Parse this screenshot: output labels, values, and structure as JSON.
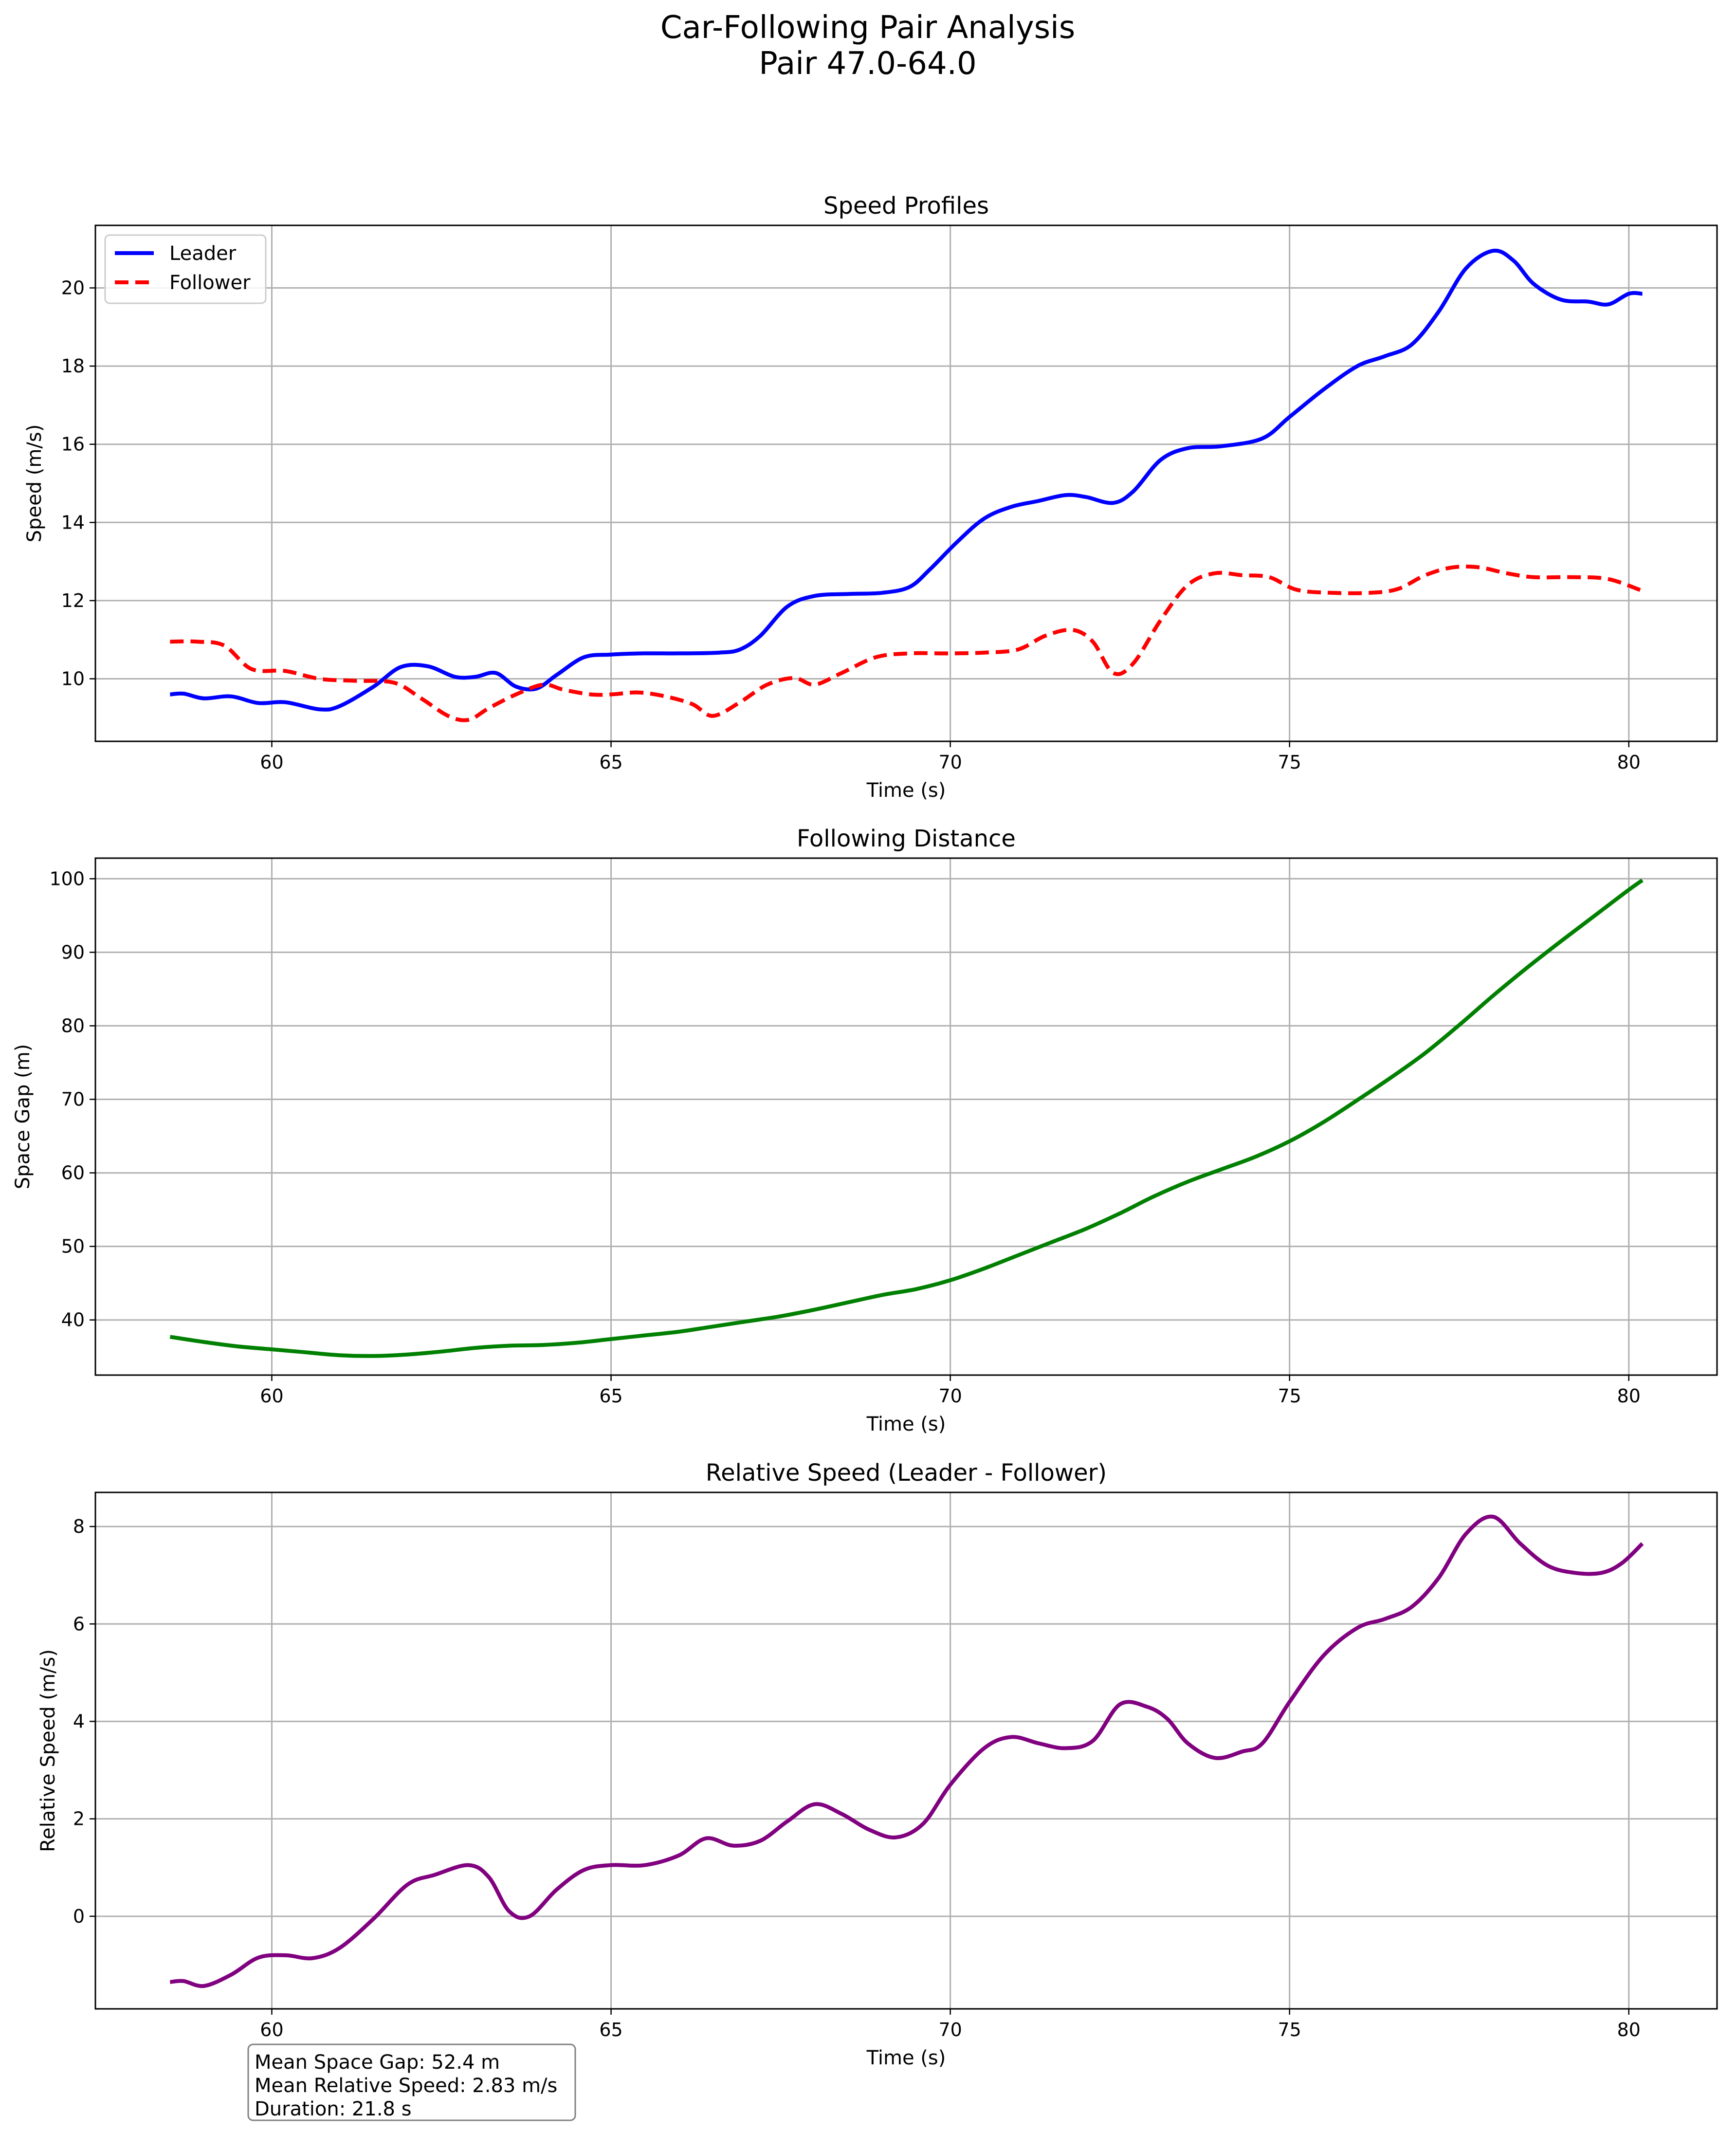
{
  "figure": {
    "title_line1": "Car-Following Pair Analysis",
    "title_line2": "Pair 47.0-64.0"
  },
  "stats_box": {
    "line1": "Mean Space Gap: 52.4 m",
    "line2": "Mean Relative Speed: 2.83 m/s",
    "line3": "Duration: 21.8 s"
  },
  "chart_data": [
    {
      "type": "line",
      "title": "Speed Profiles",
      "xlabel": "Time (s)",
      "ylabel": "Speed (m/s)",
      "xlim": [
        57.4,
        81.3
      ],
      "ylim": [
        8.4,
        21.6
      ],
      "xticks": [
        60,
        65,
        70,
        75,
        80
      ],
      "yticks": [
        10,
        12,
        14,
        16,
        18,
        20
      ],
      "grid": true,
      "legend": "top-left",
      "series": [
        {
          "name": "Leader",
          "color": "#0000ff",
          "dash": "solid",
          "points": [
            [
              58.5,
              9.6
            ],
            [
              58.7,
              9.62
            ],
            [
              59.0,
              9.5
            ],
            [
              59.4,
              9.55
            ],
            [
              59.8,
              9.38
            ],
            [
              60.2,
              9.4
            ],
            [
              60.7,
              9.22
            ],
            [
              61.0,
              9.3
            ],
            [
              61.5,
              9.8
            ],
            [
              61.9,
              10.3
            ],
            [
              62.3,
              10.32
            ],
            [
              62.7,
              10.05
            ],
            [
              63.0,
              10.05
            ],
            [
              63.3,
              10.15
            ],
            [
              63.6,
              9.8
            ],
            [
              63.9,
              9.75
            ],
            [
              64.2,
              10.1
            ],
            [
              64.6,
              10.55
            ],
            [
              65.0,
              10.62
            ],
            [
              65.5,
              10.65
            ],
            [
              66.0,
              10.65
            ],
            [
              66.6,
              10.67
            ],
            [
              66.9,
              10.75
            ],
            [
              67.2,
              11.1
            ],
            [
              67.6,
              11.85
            ],
            [
              68.0,
              12.12
            ],
            [
              68.5,
              12.17
            ],
            [
              69.0,
              12.2
            ],
            [
              69.4,
              12.35
            ],
            [
              69.7,
              12.8
            ],
            [
              70.1,
              13.5
            ],
            [
              70.5,
              14.1
            ],
            [
              70.9,
              14.4
            ],
            [
              71.3,
              14.55
            ],
            [
              71.7,
              14.7
            ],
            [
              72.0,
              14.65
            ],
            [
              72.4,
              14.5
            ],
            [
              72.7,
              14.8
            ],
            [
              73.1,
              15.6
            ],
            [
              73.5,
              15.9
            ],
            [
              74.0,
              15.95
            ],
            [
              74.6,
              16.15
            ],
            [
              75.0,
              16.7
            ],
            [
              75.5,
              17.4
            ],
            [
              76.0,
              18.0
            ],
            [
              76.4,
              18.25
            ],
            [
              76.8,
              18.55
            ],
            [
              77.2,
              19.4
            ],
            [
              77.6,
              20.5
            ],
            [
              78.0,
              20.95
            ],
            [
              78.3,
              20.7
            ],
            [
              78.6,
              20.1
            ],
            [
              79.0,
              19.7
            ],
            [
              79.4,
              19.65
            ],
            [
              79.7,
              19.58
            ],
            [
              80.0,
              19.85
            ],
            [
              80.2,
              19.85
            ]
          ]
        },
        {
          "name": "Follower",
          "color": "#ff0000",
          "dash": "dashed",
          "points": [
            [
              58.5,
              10.95
            ],
            [
              58.9,
              10.95
            ],
            [
              59.3,
              10.85
            ],
            [
              59.7,
              10.25
            ],
            [
              60.2,
              10.2
            ],
            [
              60.7,
              10.0
            ],
            [
              61.2,
              9.95
            ],
            [
              61.8,
              9.9
            ],
            [
              62.2,
              9.5
            ],
            [
              62.6,
              9.05
            ],
            [
              62.9,
              8.95
            ],
            [
              63.2,
              9.25
            ],
            [
              63.6,
              9.6
            ],
            [
              64.0,
              9.85
            ],
            [
              64.3,
              9.72
            ],
            [
              64.7,
              9.6
            ],
            [
              65.0,
              9.6
            ],
            [
              65.4,
              9.65
            ],
            [
              65.8,
              9.55
            ],
            [
              66.2,
              9.35
            ],
            [
              66.5,
              9.05
            ],
            [
              66.9,
              9.4
            ],
            [
              67.3,
              9.85
            ],
            [
              67.7,
              10.02
            ],
            [
              68.0,
              9.85
            ],
            [
              68.4,
              10.15
            ],
            [
              68.9,
              10.55
            ],
            [
              69.4,
              10.65
            ],
            [
              70.0,
              10.65
            ],
            [
              70.5,
              10.67
            ],
            [
              71.0,
              10.75
            ],
            [
              71.4,
              11.1
            ],
            [
              71.8,
              11.25
            ],
            [
              72.1,
              10.95
            ],
            [
              72.4,
              10.15
            ],
            [
              72.7,
              10.4
            ],
            [
              73.1,
              11.5
            ],
            [
              73.5,
              12.4
            ],
            [
              73.9,
              12.7
            ],
            [
              74.3,
              12.65
            ],
            [
              74.7,
              12.6
            ],
            [
              75.1,
              12.28
            ],
            [
              75.6,
              12.2
            ],
            [
              76.2,
              12.2
            ],
            [
              76.6,
              12.3
            ],
            [
              77.0,
              12.65
            ],
            [
              77.4,
              12.85
            ],
            [
              77.8,
              12.85
            ],
            [
              78.2,
              12.7
            ],
            [
              78.6,
              12.6
            ],
            [
              79.2,
              12.6
            ],
            [
              79.7,
              12.55
            ],
            [
              80.2,
              12.25
            ]
          ]
        }
      ]
    },
    {
      "type": "line",
      "title": "Following Distance",
      "xlabel": "Time (s)",
      "ylabel": "Space Gap (m)",
      "xlim": [
        57.4,
        81.3
      ],
      "ylim": [
        32.5,
        102.8
      ],
      "xticks": [
        60,
        65,
        70,
        75,
        80
      ],
      "yticks": [
        40,
        50,
        60,
        70,
        80,
        90,
        100
      ],
      "grid": true,
      "series": [
        {
          "color": "#008000",
          "dash": "solid",
          "points": [
            [
              58.5,
              37.7
            ],
            [
              59.0,
              37.0
            ],
            [
              59.5,
              36.4
            ],
            [
              60.0,
              36.0
            ],
            [
              60.5,
              35.6
            ],
            [
              61.0,
              35.2
            ],
            [
              61.5,
              35.1
            ],
            [
              62.0,
              35.3
            ],
            [
              62.5,
              35.7
            ],
            [
              63.0,
              36.2
            ],
            [
              63.5,
              36.5
            ],
            [
              64.0,
              36.6
            ],
            [
              64.5,
              36.9
            ],
            [
              65.0,
              37.4
            ],
            [
              65.5,
              37.9
            ],
            [
              66.0,
              38.4
            ],
            [
              66.5,
              39.1
            ],
            [
              67.0,
              39.8
            ],
            [
              67.5,
              40.5
            ],
            [
              68.0,
              41.4
            ],
            [
              68.5,
              42.4
            ],
            [
              69.0,
              43.4
            ],
            [
              69.5,
              44.2
            ],
            [
              70.0,
              45.4
            ],
            [
              70.5,
              47.0
            ],
            [
              71.0,
              48.8
            ],
            [
              71.5,
              50.6
            ],
            [
              72.0,
              52.4
            ],
            [
              72.5,
              54.5
            ],
            [
              73.0,
              56.8
            ],
            [
              73.5,
              58.8
            ],
            [
              74.0,
              60.5
            ],
            [
              74.5,
              62.2
            ],
            [
              75.0,
              64.3
            ],
            [
              75.5,
              66.9
            ],
            [
              76.0,
              69.9
            ],
            [
              76.5,
              73.0
            ],
            [
              77.0,
              76.3
            ],
            [
              77.5,
              80.1
            ],
            [
              78.0,
              84.1
            ],
            [
              78.5,
              87.9
            ],
            [
              79.0,
              91.5
            ],
            [
              79.5,
              95.0
            ],
            [
              80.0,
              98.5
            ],
            [
              80.2,
              99.8
            ]
          ]
        }
      ]
    },
    {
      "type": "line",
      "title": "Relative Speed (Leader - Follower)",
      "xlabel": "Time (s)",
      "ylabel": "Relative Speed (m/s)",
      "xlim": [
        57.4,
        81.3
      ],
      "ylim": [
        -1.9,
        8.7
      ],
      "xticks": [
        60,
        65,
        70,
        75,
        80
      ],
      "yticks": [
        0,
        2,
        4,
        6,
        8
      ],
      "grid": true,
      "series": [
        {
          "color": "#800080",
          "dash": "solid",
          "points": [
            [
              58.5,
              -1.35
            ],
            [
              58.7,
              -1.33
            ],
            [
              59.0,
              -1.43
            ],
            [
              59.4,
              -1.2
            ],
            [
              59.8,
              -0.85
            ],
            [
              60.2,
              -0.8
            ],
            [
              60.6,
              -0.86
            ],
            [
              61.0,
              -0.65
            ],
            [
              61.5,
              -0.05
            ],
            [
              62.0,
              0.65
            ],
            [
              62.4,
              0.85
            ],
            [
              62.9,
              1.05
            ],
            [
              63.2,
              0.8
            ],
            [
              63.5,
              0.1
            ],
            [
              63.8,
              0.0
            ],
            [
              64.2,
              0.55
            ],
            [
              64.6,
              0.95
            ],
            [
              65.0,
              1.05
            ],
            [
              65.5,
              1.05
            ],
            [
              66.0,
              1.25
            ],
            [
              66.4,
              1.6
            ],
            [
              66.8,
              1.45
            ],
            [
              67.2,
              1.55
            ],
            [
              67.6,
              1.95
            ],
            [
              68.0,
              2.3
            ],
            [
              68.4,
              2.1
            ],
            [
              68.8,
              1.78
            ],
            [
              69.2,
              1.62
            ],
            [
              69.6,
              1.9
            ],
            [
              70.0,
              2.7
            ],
            [
              70.5,
              3.45
            ],
            [
              70.9,
              3.68
            ],
            [
              71.3,
              3.55
            ],
            [
              71.7,
              3.45
            ],
            [
              72.1,
              3.6
            ],
            [
              72.5,
              4.35
            ],
            [
              72.9,
              4.3
            ],
            [
              73.2,
              4.05
            ],
            [
              73.5,
              3.55
            ],
            [
              73.9,
              3.25
            ],
            [
              74.3,
              3.38
            ],
            [
              74.6,
              3.55
            ],
            [
              75.0,
              4.4
            ],
            [
              75.5,
              5.35
            ],
            [
              76.0,
              5.92
            ],
            [
              76.4,
              6.1
            ],
            [
              76.8,
              6.35
            ],
            [
              77.2,
              6.95
            ],
            [
              77.6,
              7.85
            ],
            [
              78.0,
              8.2
            ],
            [
              78.4,
              7.65
            ],
            [
              78.8,
              7.2
            ],
            [
              79.2,
              7.05
            ],
            [
              79.6,
              7.05
            ],
            [
              79.9,
              7.25
            ],
            [
              80.2,
              7.65
            ]
          ]
        }
      ]
    }
  ]
}
